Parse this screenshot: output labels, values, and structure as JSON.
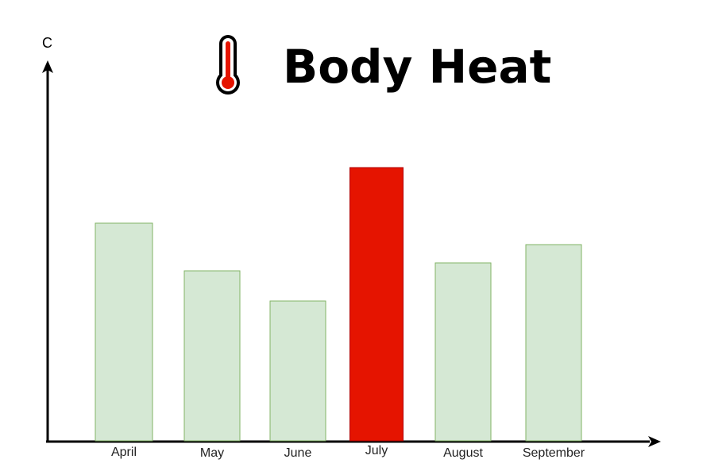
{
  "chart_data": {
    "type": "bar",
    "title": "Body Heat",
    "ylabel": "C",
    "xlabel": "",
    "categories": [
      "April",
      "May",
      "June",
      "July",
      "August",
      "September"
    ],
    "values": [
      274,
      214,
      176,
      344,
      224,
      247
    ],
    "ylim": [
      0,
      500
    ],
    "grid": false,
    "legend": "none",
    "highlight_index": 3,
    "colors": {
      "bar_fill": "#d5e8d4",
      "bar_stroke": "#82b366",
      "highlight_fill": "#e51400",
      "highlight_stroke": "#b20000",
      "thermometer_red": "#e51400",
      "axis": "#000000"
    },
    "icons": {
      "title_icon": "thermometer-icon"
    }
  }
}
